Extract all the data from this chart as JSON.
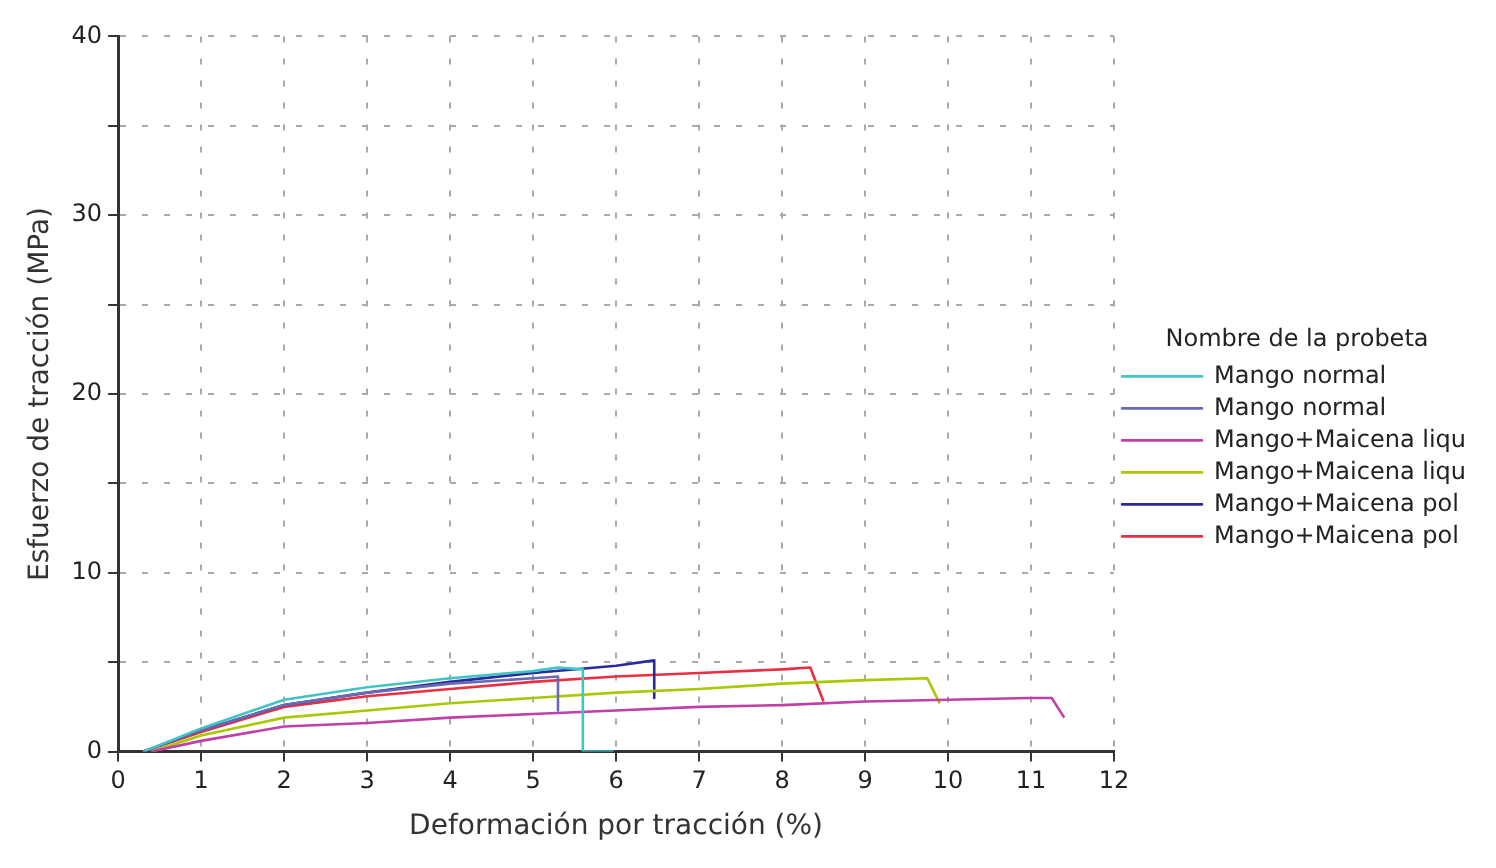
{
  "chart_data": {
    "type": "line",
    "xlabel": "Deformación por tracción (%)",
    "ylabel": "Esfuerzo de tracción (MPa)",
    "legend_title": "Nombre de la probeta",
    "legend": "right",
    "grid": true,
    "marker": "none",
    "line_style": "solid",
    "xlim": [
      0,
      12
    ],
    "xticks": [
      0,
      1,
      2,
      3,
      4,
      5,
      6,
      7,
      8,
      9,
      10,
      11,
      12
    ],
    "ylim": [
      0,
      40
    ],
    "yticks": [
      0,
      {
        "value": 5,
        "label": null
      },
      10,
      {
        "value": 15,
        "label": null
      },
      20,
      {
        "value": 25,
        "label": null
      },
      30,
      {
        "value": 35,
        "label": null
      },
      40
    ],
    "series": [
      {
        "name": "Mango normal",
        "color": "#40c4c4",
        "x": [
          0.3,
          1,
          2,
          3,
          4,
          5,
          5.3,
          5.6,
          5.6,
          5.97
        ],
        "values": [
          0,
          1.3,
          2.9,
          3.6,
          4.1,
          4.5,
          4.7,
          4.6,
          0,
          0
        ]
      },
      {
        "name": "Mango normal",
        "color": "#6a6ab4",
        "x": [
          0.3,
          1,
          2,
          3,
          4,
          5,
          5.3,
          5.3
        ],
        "values": [
          0,
          1.2,
          2.6,
          3.3,
          3.8,
          4.1,
          4.2,
          2.3
        ]
      },
      {
        "name": "Mango+Maicena liqu",
        "color": "#c040a8",
        "x": [
          0.4,
          1,
          2,
          3,
          4,
          5,
          6,
          7,
          8,
          9,
          10,
          11,
          11.25,
          11.4
        ],
        "values": [
          0,
          0.6,
          1.4,
          1.6,
          1.9,
          2.1,
          2.3,
          2.5,
          2.6,
          2.8,
          2.9,
          3.0,
          3.0,
          1.9
        ]
      },
      {
        "name": "Mango+Maicena liqu",
        "color": "#a8c800",
        "x": [
          0.4,
          1,
          2,
          3,
          4,
          5,
          6,
          7,
          8,
          9,
          9.75,
          9.9
        ],
        "values": [
          0,
          0.9,
          1.9,
          2.3,
          2.7,
          3.0,
          3.3,
          3.5,
          3.8,
          4.0,
          4.1,
          2.7
        ]
      },
      {
        "name": "Mango+Maicena pol",
        "color": "#2a2a9c",
        "x": [
          0.3,
          1,
          2,
          3,
          4,
          5,
          6,
          6.46,
          6.46
        ],
        "values": [
          0,
          1.2,
          2.6,
          3.3,
          3.9,
          4.4,
          4.8,
          5.1,
          3.0
        ]
      },
      {
        "name": "Mango+Maicena pol",
        "color": "#e83040",
        "x": [
          0.3,
          1,
          2,
          3,
          4,
          5,
          6,
          7,
          8,
          8.34,
          8.5
        ],
        "values": [
          0,
          1.1,
          2.5,
          3.1,
          3.5,
          3.9,
          4.2,
          4.4,
          4.6,
          4.7,
          2.8
        ]
      }
    ]
  }
}
